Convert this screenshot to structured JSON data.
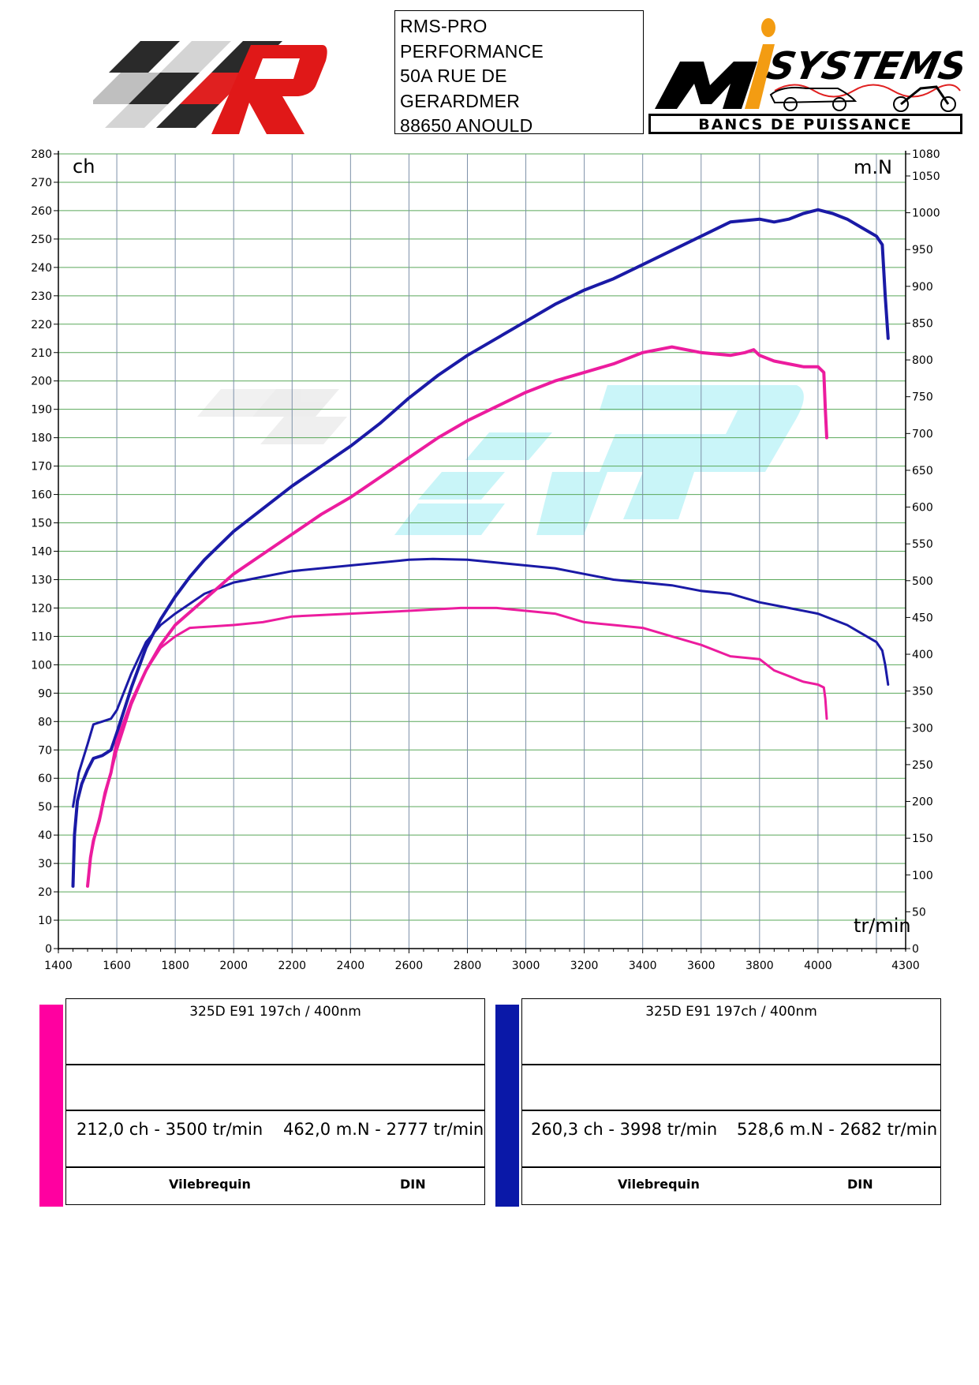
{
  "header": {
    "address_lines": [
      "RMS-PRO",
      "PERFORMANCE",
      "50A RUE DE",
      "GERARDMER",
      "88650 ANOULD"
    ],
    "logo_right_text_top": "SYSTEMS",
    "logo_right_text_bottom": "BANCS DE PUISSANCE"
  },
  "chart_data": {
    "type": "line",
    "xlabel": "tr/min",
    "ylabel_left": "ch",
    "ylabel_right": "m.N",
    "xlim": [
      1400,
      4300
    ],
    "ylim_left": [
      0,
      280
    ],
    "ylim_right": [
      0,
      1080
    ],
    "x_ticks": [
      1400,
      1600,
      1800,
      2000,
      2200,
      2400,
      2600,
      2800,
      3000,
      3200,
      3400,
      3600,
      3800,
      4000,
      4300
    ],
    "y_left_ticks": [
      0,
      10,
      20,
      30,
      40,
      50,
      60,
      70,
      80,
      90,
      100,
      110,
      120,
      130,
      140,
      150,
      160,
      170,
      180,
      190,
      200,
      210,
      220,
      230,
      240,
      250,
      260,
      270,
      280
    ],
    "y_right_ticks": [
      0,
      50,
      100,
      150,
      200,
      250,
      300,
      350,
      400,
      450,
      500,
      550,
      600,
      650,
      700,
      750,
      800,
      850,
      900,
      950,
      1000,
      1050,
      1080
    ],
    "grid": true,
    "series": [
      {
        "color": "#1a1aa6",
        "axis": "left",
        "points": [
          [
            1450,
            22
          ],
          [
            1455,
            40
          ],
          [
            1465,
            52
          ],
          [
            1480,
            58
          ],
          [
            1500,
            63
          ],
          [
            1520,
            67
          ],
          [
            1550,
            68
          ],
          [
            1580,
            70
          ],
          [
            1600,
            76
          ],
          [
            1650,
            92
          ],
          [
            1700,
            106
          ],
          [
            1750,
            116
          ],
          [
            1800,
            124
          ],
          [
            1850,
            131
          ],
          [
            1900,
            137
          ],
          [
            2000,
            147
          ],
          [
            2100,
            155
          ],
          [
            2200,
            163
          ],
          [
            2300,
            170
          ],
          [
            2400,
            177
          ],
          [
            2500,
            185
          ],
          [
            2600,
            194
          ],
          [
            2700,
            202
          ],
          [
            2800,
            209
          ],
          [
            2900,
            215
          ],
          [
            3000,
            221
          ],
          [
            3100,
            227
          ],
          [
            3200,
            232
          ],
          [
            3300,
            236
          ],
          [
            3400,
            241
          ],
          [
            3500,
            246
          ],
          [
            3600,
            251
          ],
          [
            3700,
            256
          ],
          [
            3800,
            257
          ],
          [
            3850,
            256
          ],
          [
            3900,
            257
          ],
          [
            3950,
            259
          ],
          [
            4000,
            260.3
          ],
          [
            4050,
            259
          ],
          [
            4100,
            257
          ],
          [
            4150,
            254
          ],
          [
            4200,
            251
          ],
          [
            4220,
            248
          ],
          [
            4230,
            230
          ],
          [
            4240,
            215
          ]
        ]
      },
      {
        "color": "#1a1aa6",
        "axis": "left",
        "points": [
          [
            1450,
            50
          ],
          [
            1470,
            62
          ],
          [
            1500,
            72
          ],
          [
            1520,
            79
          ],
          [
            1550,
            80
          ],
          [
            1580,
            81
          ],
          [
            1600,
            84
          ],
          [
            1650,
            97
          ],
          [
            1700,
            108
          ],
          [
            1750,
            114
          ],
          [
            1800,
            118
          ],
          [
            1900,
            125
          ],
          [
            2000,
            129
          ],
          [
            2100,
            131
          ],
          [
            2200,
            133
          ],
          [
            2400,
            135
          ],
          [
            2600,
            137
          ],
          [
            2682,
            137.3
          ],
          [
            2800,
            137
          ],
          [
            2900,
            136
          ],
          [
            3000,
            135
          ],
          [
            3100,
            134
          ],
          [
            3200,
            132
          ],
          [
            3300,
            130
          ],
          [
            3400,
            129
          ],
          [
            3500,
            128
          ],
          [
            3600,
            126
          ],
          [
            3700,
            125
          ],
          [
            3800,
            122
          ],
          [
            3900,
            120
          ],
          [
            4000,
            118
          ],
          [
            4100,
            114
          ],
          [
            4150,
            111
          ],
          [
            4200,
            108
          ],
          [
            4220,
            105
          ],
          [
            4230,
            100
          ],
          [
            4240,
            93
          ]
        ]
      },
      {
        "color": "#ec1c9e",
        "axis": "left",
        "points": [
          [
            1500,
            22
          ],
          [
            1510,
            32
          ],
          [
            1520,
            38
          ],
          [
            1540,
            45
          ],
          [
            1560,
            55
          ],
          [
            1580,
            62
          ],
          [
            1600,
            73
          ],
          [
            1650,
            87
          ],
          [
            1700,
            98
          ],
          [
            1750,
            107
          ],
          [
            1800,
            114
          ],
          [
            1900,
            123
          ],
          [
            2000,
            132
          ],
          [
            2100,
            139
          ],
          [
            2200,
            146
          ],
          [
            2300,
            153
          ],
          [
            2400,
            159
          ],
          [
            2500,
            166
          ],
          [
            2600,
            173
          ],
          [
            2700,
            180
          ],
          [
            2800,
            186
          ],
          [
            2900,
            191
          ],
          [
            3000,
            196
          ],
          [
            3100,
            200
          ],
          [
            3200,
            203
          ],
          [
            3300,
            206
          ],
          [
            3400,
            210
          ],
          [
            3500,
            212
          ],
          [
            3600,
            210
          ],
          [
            3700,
            209
          ],
          [
            3750,
            210
          ],
          [
            3780,
            211
          ],
          [
            3800,
            209
          ],
          [
            3850,
            207
          ],
          [
            3900,
            206
          ],
          [
            3950,
            205
          ],
          [
            4000,
            205
          ],
          [
            4020,
            203
          ],
          [
            4025,
            190
          ],
          [
            4030,
            180
          ]
        ]
      },
      {
        "color": "#ec1c9e",
        "axis": "left",
        "points": [
          [
            1500,
            22
          ],
          [
            1510,
            32
          ],
          [
            1530,
            42
          ],
          [
            1550,
            50
          ],
          [
            1580,
            62
          ],
          [
            1600,
            70
          ],
          [
            1650,
            86
          ],
          [
            1700,
            98
          ],
          [
            1750,
            106
          ],
          [
            1800,
            110
          ],
          [
            1850,
            113
          ],
          [
            2000,
            114
          ],
          [
            2100,
            115
          ],
          [
            2200,
            117
          ],
          [
            2400,
            118
          ],
          [
            2600,
            119
          ],
          [
            2777,
            120
          ],
          [
            2900,
            120
          ],
          [
            3000,
            119
          ],
          [
            3100,
            118
          ],
          [
            3200,
            115
          ],
          [
            3300,
            114
          ],
          [
            3400,
            113
          ],
          [
            3500,
            110
          ],
          [
            3600,
            107
          ],
          [
            3700,
            103
          ],
          [
            3800,
            102
          ],
          [
            3850,
            98
          ],
          [
            3900,
            96
          ],
          [
            3950,
            94
          ],
          [
            4000,
            93
          ],
          [
            4020,
            92
          ],
          [
            4025,
            88
          ],
          [
            4030,
            81
          ]
        ]
      }
    ]
  },
  "legend": {
    "left": {
      "color": "#ff00a0",
      "title": "325D E91 197ch / 400nm",
      "power": "212,0 ch - 3500 tr/min",
      "torque": "462,0 m.N - 2777 tr/min",
      "label1": "Vilebrequin",
      "label2": "DIN"
    },
    "right": {
      "color": "#0a18a8",
      "title": "325D E91 197ch / 400nm",
      "power": "260,3 ch - 3998 tr/min",
      "torque": "528,6 m.N - 2682 tr/min",
      "label1": "Vilebrequin",
      "label2": "DIN"
    }
  }
}
